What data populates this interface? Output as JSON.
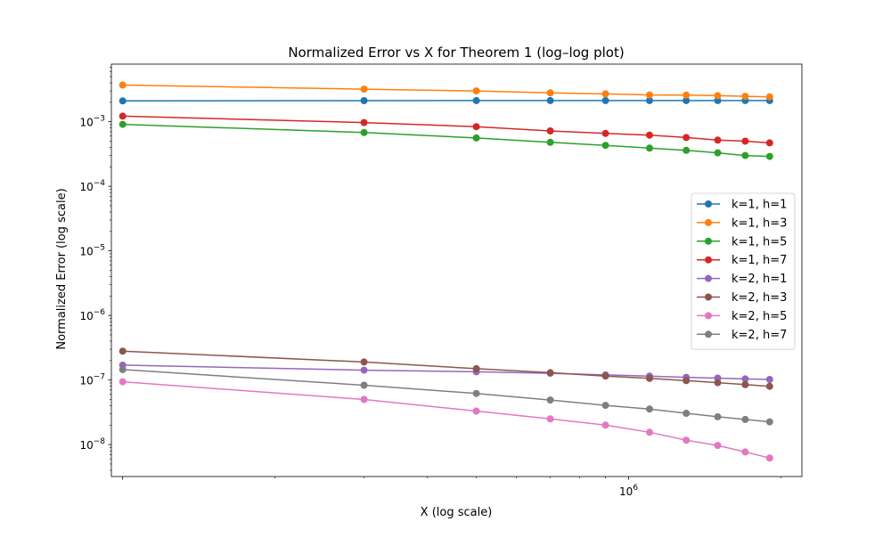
{
  "chart_data": {
    "type": "line",
    "title": "Normalized Error vs X for Theorem 1 (log–log plot)",
    "xlabel": "X (log scale)",
    "ylabel": "Normalized Error (log scale)",
    "xscale": "log",
    "yscale": "log",
    "xlim": [
      95000,
      2200000
    ],
    "ylim": [
      3.2e-09,
      0.0078
    ],
    "x_ticks": [
      {
        "value": 1000000,
        "base": "10",
        "exp": "6"
      }
    ],
    "y_ticks": [
      {
        "value": 1e-08,
        "base": "10",
        "exp": "−8"
      },
      {
        "value": 1e-07,
        "base": "10",
        "exp": "−7"
      },
      {
        "value": 1e-06,
        "base": "10",
        "exp": "−6"
      },
      {
        "value": 1e-05,
        "base": "10",
        "exp": "−5"
      },
      {
        "value": 0.0001,
        "base": "10",
        "exp": "−4"
      },
      {
        "value": 0.001,
        "base": "10",
        "exp": "−3"
      }
    ],
    "grid": false,
    "legend_position": "center-right",
    "markers": "circle",
    "x": [
      100000,
      300000,
      500000,
      700000,
      900000,
      1100000,
      1300000,
      1500000,
      1700000,
      1900000
    ],
    "series": [
      {
        "name": "k=1, h=1",
        "color": "#1f77b4",
        "values": [
          0.0021,
          0.00212,
          0.00213,
          0.00213,
          0.00213,
          0.00213,
          0.00213,
          0.00213,
          0.00213,
          0.00213
        ]
      },
      {
        "name": "k=1, h=3",
        "color": "#ff7f0e",
        "values": [
          0.0037,
          0.0032,
          0.003,
          0.0028,
          0.0027,
          0.0026,
          0.00258,
          0.00253,
          0.00248,
          0.00243
        ]
      },
      {
        "name": "k=1, h=5",
        "color": "#2ca02c",
        "values": [
          0.00091,
          0.00068,
          0.00056,
          0.00048,
          0.00043,
          0.00039,
          0.00036,
          0.00033,
          0.0003,
          0.00029
        ]
      },
      {
        "name": "k=1, h=7",
        "color": "#d62728",
        "values": [
          0.00122,
          0.00097,
          0.00084,
          0.00072,
          0.00066,
          0.00062,
          0.00057,
          0.00052,
          0.0005,
          0.00047
        ]
      },
      {
        "name": "k=2, h=1",
        "color": "#9467bd",
        "values": [
          1.7e-07,
          1.42e-07,
          1.34e-07,
          1.27e-07,
          1.2e-07,
          1.15e-07,
          1.1e-07,
          1.07e-07,
          1.04e-07,
          1.02e-07
        ]
      },
      {
        "name": "k=2, h=3",
        "color": "#8c564b",
        "values": [
          2.8e-07,
          1.9e-07,
          1.5e-07,
          1.3e-07,
          1.15e-07,
          1.06e-07,
          9.8e-08,
          9.1e-08,
          8.5e-08,
          8e-08
        ]
      },
      {
        "name": "k=2, h=5",
        "color": "#e377c2",
        "values": [
          9.4e-08,
          5e-08,
          3.3e-08,
          2.5e-08,
          2e-08,
          1.55e-08,
          1.17e-08,
          9.7e-09,
          7.7e-09,
          6.2e-09
        ]
      },
      {
        "name": "k=2, h=7",
        "color": "#7f7f7f",
        "values": [
          1.45e-07,
          8.3e-08,
          6.2e-08,
          4.9e-08,
          4.05e-08,
          3.55e-08,
          3.05e-08,
          2.7e-08,
          2.45e-08,
          2.25e-08
        ]
      }
    ]
  }
}
